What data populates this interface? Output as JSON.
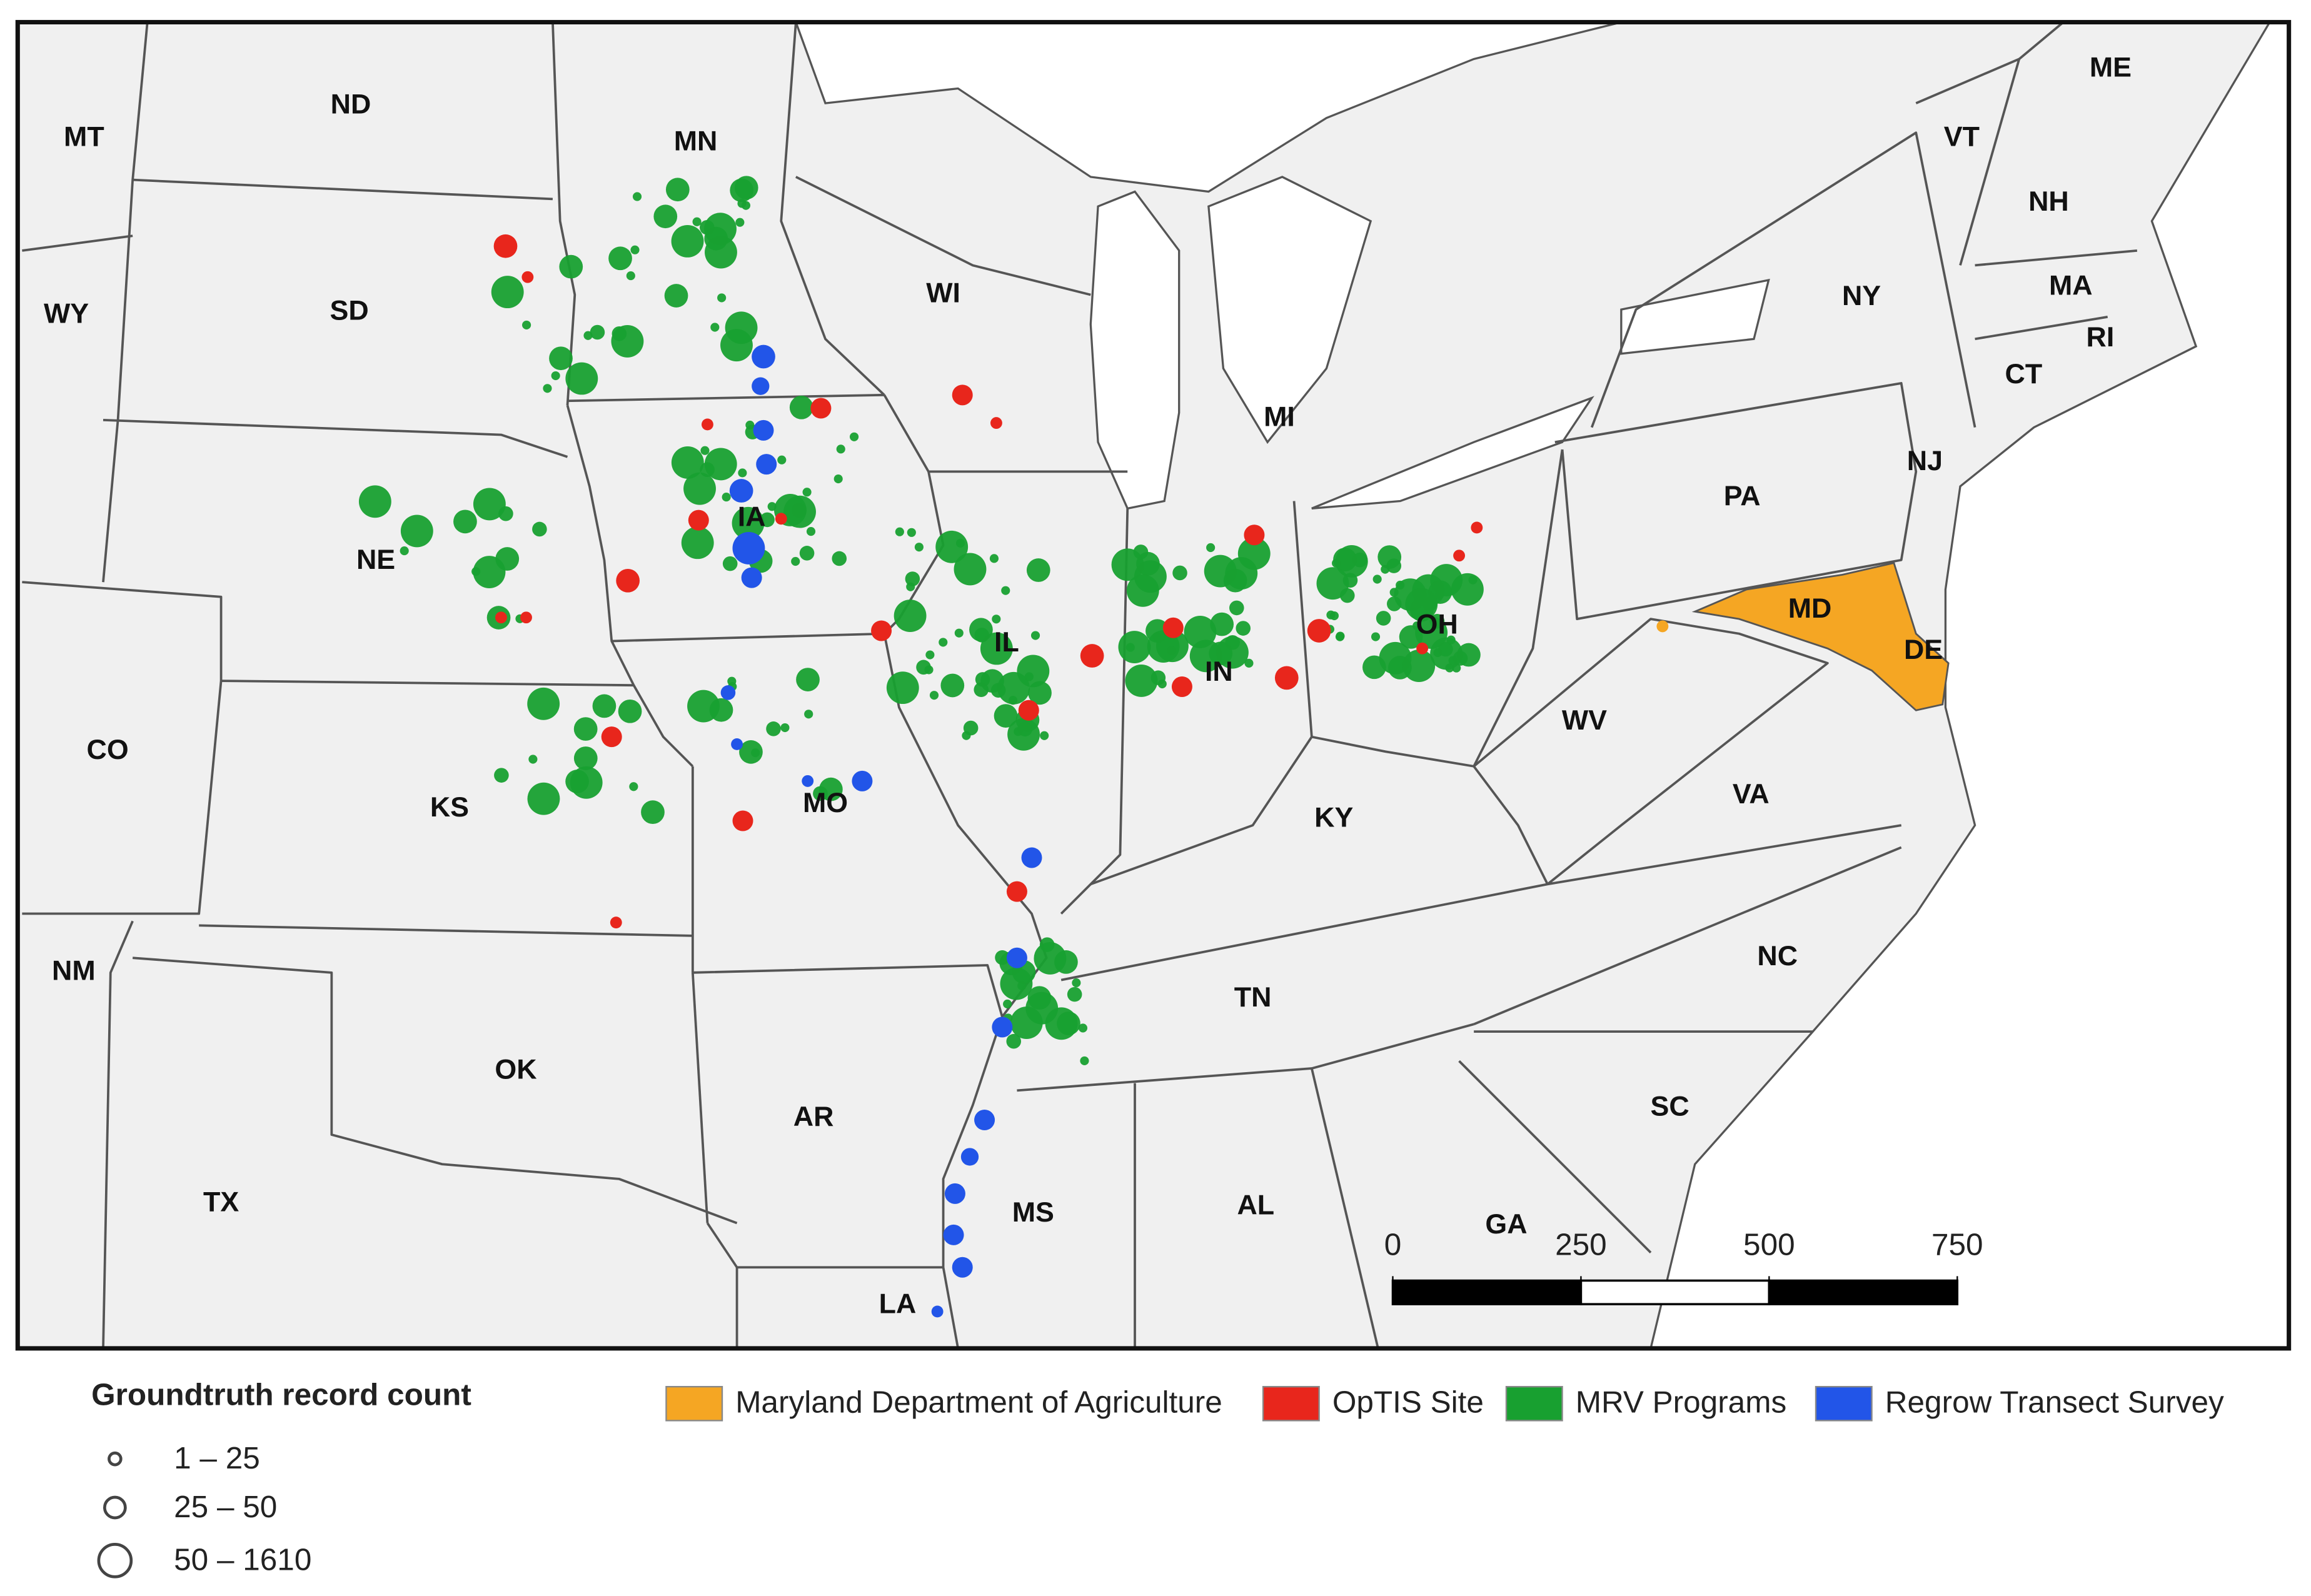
{
  "map": {
    "labels": [
      "MT",
      "ND",
      "MN",
      "WY",
      "SD",
      "WI",
      "MI",
      "NY",
      "VT",
      "NH",
      "ME",
      "MA",
      "RI",
      "CT",
      "NJ",
      "PA",
      "NE",
      "IA",
      "IL",
      "IN",
      "OH",
      "MD",
      "DE",
      "WV",
      "CO",
      "KS",
      "MO",
      "KY",
      "VA",
      "NM",
      "TN",
      "NC",
      "OK",
      "AR",
      "SC",
      "TX",
      "MS",
      "AL",
      "GA",
      "LA"
    ]
  },
  "legend": {
    "size_title": "Groundtruth record count",
    "size_classes": [
      "1 – 25",
      "25 – 50",
      "50 – 1610"
    ],
    "categories": [
      {
        "name": "Maryland Department of Agriculture",
        "color": "#f5a623"
      },
      {
        "name": "OpTIS Site",
        "color": "#e8261c"
      },
      {
        "name": "MRV Programs",
        "color": "#18a030"
      },
      {
        "name": "Regrow Transect Survey",
        "color": "#2255e8"
      }
    ]
  },
  "scale_bar": {
    "ticks": [
      0,
      250,
      500,
      750
    ]
  }
}
